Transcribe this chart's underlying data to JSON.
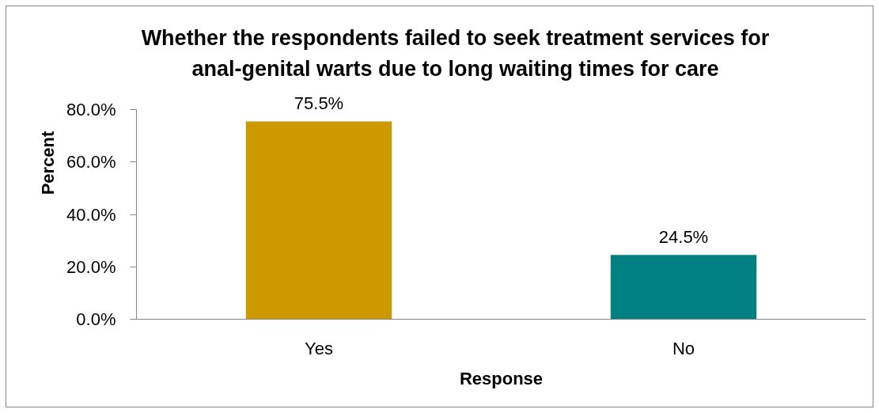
{
  "chart_data": {
    "type": "bar",
    "title": "Whether the respondents failed to seek treatment services for anal-genital warts due to long waiting times for care",
    "xlabel": "Response",
    "ylabel": "Percent",
    "categories": [
      "Yes",
      "No"
    ],
    "values": [
      75.5,
      24.5
    ],
    "colors": [
      "#cc9900",
      "#008080"
    ],
    "value_labels": [
      "75.5%",
      "24.5%"
    ],
    "ylim": [
      0,
      80
    ],
    "yticks": [
      {
        "value": 0,
        "label": "0.0%"
      },
      {
        "value": 20,
        "label": "20.0%"
      },
      {
        "value": 40,
        "label": "40.0%"
      },
      {
        "value": 60,
        "label": "60.0%"
      },
      {
        "value": 80,
        "label": "80.0%"
      }
    ]
  }
}
